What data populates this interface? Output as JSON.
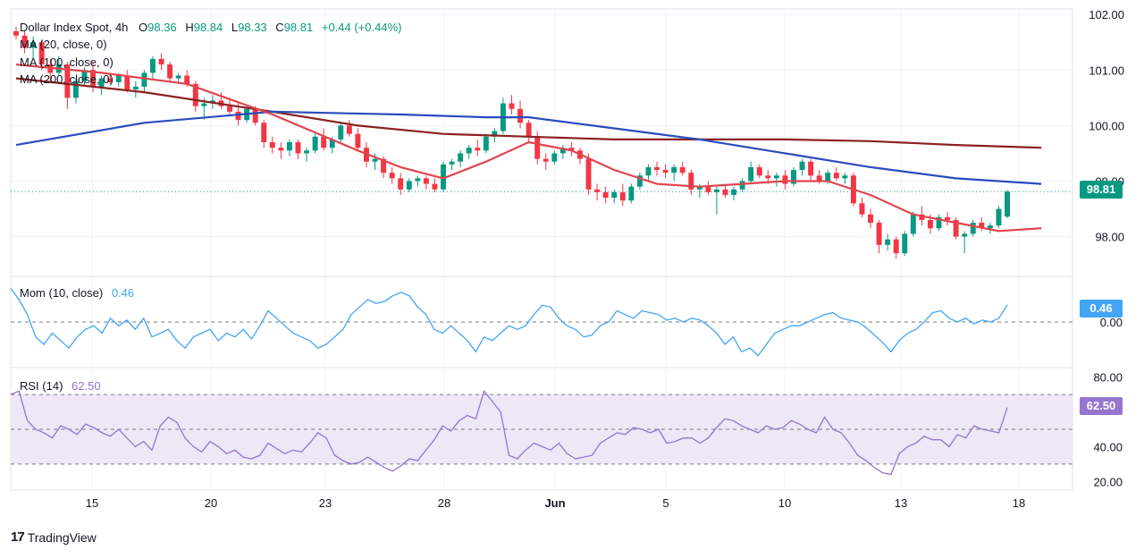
{
  "header": {
    "symbol": "Dollar Index Spot, 4h",
    "ohlc": {
      "o_label": "O",
      "o": "98.36",
      "h_label": "H",
      "h": "98.84",
      "l_label": "L",
      "l": "98.33",
      "c_label": "C",
      "c": "98.81",
      "change": "+0.44 (+0.44%)"
    },
    "ma_labels": [
      "MA (20, close, 0)",
      "MA (100, close, 0)",
      "MA (200, close, 0)"
    ],
    "mom_label": "Mom (10, close)",
    "mom_value": "0.46",
    "rsi_label": "RSI (14)",
    "rsi_value": "62.50"
  },
  "branding": {
    "logo_mark": "17",
    "logo_text": "TradingView"
  },
  "colors": {
    "up": "#089981",
    "down": "#f23645",
    "ma20": "#e0454f",
    "ma100": "#2a4bbd",
    "ma200": "#8b2121",
    "mom": "#42a5f5",
    "rsi": "#9575cd",
    "rsi_band": "#ede7f6",
    "grid": "#f0f3fa",
    "axis_text": "#131722"
  },
  "chart_data": [
    {
      "type": "candlestick",
      "title": "Dollar Index Spot, 4h",
      "price_axis": {
        "ticks": [
          "102.00",
          "101.00",
          "100.00",
          "99.00",
          "98.00"
        ],
        "ylim": [
          97.3,
          102.1
        ]
      },
      "time_axis": {
        "ticks": [
          "15",
          "20",
          "23",
          "28",
          "Jun",
          "5",
          "10",
          "13",
          "18"
        ]
      },
      "last_price": "98.81",
      "candles_ohlc": [
        [
          101.7,
          101.78,
          101.55,
          101.62
        ],
        [
          101.62,
          101.72,
          101.3,
          101.4
        ],
        [
          101.4,
          101.6,
          101.2,
          101.5
        ],
        [
          101.5,
          101.55,
          101.0,
          101.1
        ],
        [
          101.1,
          101.2,
          100.8,
          100.95
        ],
        [
          100.95,
          101.25,
          100.9,
          101.1
        ],
        [
          101.1,
          101.15,
          100.3,
          100.5
        ],
        [
          100.5,
          100.85,
          100.4,
          100.8
        ],
        [
          100.8,
          101.05,
          100.7,
          101.0
        ],
        [
          101.0,
          101.15,
          100.6,
          100.7
        ],
        [
          100.7,
          100.9,
          100.55,
          100.85
        ],
        [
          100.85,
          100.95,
          100.75,
          100.78
        ],
        [
          100.78,
          100.95,
          100.7,
          100.9
        ],
        [
          100.9,
          101.0,
          100.6,
          100.65
        ],
        [
          100.65,
          100.8,
          100.5,
          100.7
        ],
        [
          100.7,
          101.0,
          100.6,
          100.95
        ],
        [
          100.95,
          101.25,
          100.85,
          101.2
        ],
        [
          101.2,
          101.3,
          101.0,
          101.1
        ],
        [
          101.1,
          101.15,
          100.8,
          100.85
        ],
        [
          100.85,
          100.95,
          100.75,
          100.9
        ],
        [
          100.9,
          101.0,
          100.7,
          100.75
        ],
        [
          100.75,
          100.8,
          100.25,
          100.35
        ],
        [
          100.35,
          100.5,
          100.1,
          100.4
        ],
        [
          100.4,
          100.55,
          100.3,
          100.45
        ],
        [
          100.45,
          100.6,
          100.3,
          100.35
        ],
        [
          100.35,
          100.5,
          100.2,
          100.25
        ],
        [
          100.25,
          100.4,
          100.0,
          100.1
        ],
        [
          100.1,
          100.35,
          100.05,
          100.3
        ],
        [
          100.3,
          100.35,
          100.0,
          100.05
        ],
        [
          100.05,
          100.1,
          99.6,
          99.7
        ],
        [
          99.7,
          99.8,
          99.5,
          99.6
        ],
        [
          99.6,
          99.7,
          99.4,
          99.55
        ],
        [
          99.55,
          99.75,
          99.45,
          99.7
        ],
        [
          99.7,
          99.75,
          99.4,
          99.5
        ],
        [
          99.5,
          99.6,
          99.35,
          99.55
        ],
        [
          99.55,
          99.85,
          99.5,
          99.8
        ],
        [
          99.8,
          99.95,
          99.55,
          99.6
        ],
        [
          99.6,
          99.8,
          99.5,
          99.75
        ],
        [
          99.75,
          100.05,
          99.7,
          100.0
        ],
        [
          100.0,
          100.1,
          99.8,
          99.85
        ],
        [
          99.85,
          99.95,
          99.55,
          99.6
        ],
        [
          99.6,
          99.7,
          99.25,
          99.35
        ],
        [
          99.35,
          99.5,
          99.2,
          99.4
        ],
        [
          99.4,
          99.45,
          99.05,
          99.15
        ],
        [
          99.15,
          99.25,
          98.95,
          99.05
        ],
        [
          99.05,
          99.15,
          98.75,
          98.85
        ],
        [
          98.85,
          99.05,
          98.8,
          99.0
        ],
        [
          99.0,
          99.1,
          98.9,
          99.05
        ],
        [
          99.05,
          99.1,
          98.85,
          98.95
        ],
        [
          98.95,
          99.05,
          98.8,
          98.85
        ],
        [
          98.85,
          99.35,
          98.8,
          99.3
        ],
        [
          99.3,
          99.4,
          99.2,
          99.35
        ],
        [
          99.35,
          99.55,
          99.25,
          99.5
        ],
        [
          99.5,
          99.65,
          99.4,
          99.6
        ],
        [
          99.6,
          99.75,
          99.45,
          99.55
        ],
        [
          99.55,
          99.85,
          99.5,
          99.8
        ],
        [
          99.8,
          99.95,
          99.7,
          99.9
        ],
        [
          99.9,
          100.5,
          99.85,
          100.4
        ],
        [
          100.4,
          100.55,
          100.2,
          100.3
        ],
        [
          100.3,
          100.45,
          99.95,
          100.05
        ],
        [
          100.05,
          100.1,
          99.7,
          99.8
        ],
        [
          99.8,
          99.9,
          99.3,
          99.4
        ],
        [
          99.4,
          99.5,
          99.2,
          99.35
        ],
        [
          99.35,
          99.55,
          99.3,
          99.5
        ],
        [
          99.5,
          99.65,
          99.4,
          99.6
        ],
        [
          99.6,
          99.7,
          99.45,
          99.55
        ],
        [
          99.55,
          99.6,
          99.3,
          99.4
        ],
        [
          99.4,
          99.5,
          98.75,
          98.85
        ],
        [
          98.85,
          98.95,
          98.65,
          98.8
        ],
        [
          98.8,
          98.9,
          98.6,
          98.7
        ],
        [
          98.7,
          98.85,
          98.6,
          98.8
        ],
        [
          98.8,
          98.95,
          98.55,
          98.65
        ],
        [
          98.65,
          98.95,
          98.6,
          98.9
        ],
        [
          98.9,
          99.15,
          98.85,
          99.1
        ],
        [
          99.1,
          99.3,
          99.0,
          99.25
        ],
        [
          99.25,
          99.35,
          99.1,
          99.2
        ],
        [
          99.2,
          99.3,
          99.05,
          99.15
        ],
        [
          99.15,
          99.3,
          99.0,
          99.25
        ],
        [
          99.25,
          99.35,
          99.1,
          99.15
        ],
        [
          99.15,
          99.2,
          98.75,
          98.85
        ],
        [
          98.85,
          98.95,
          98.7,
          98.9
        ],
        [
          98.9,
          99.0,
          98.75,
          98.8
        ],
        [
          98.8,
          98.9,
          98.4,
          98.85
        ],
        [
          98.85,
          98.95,
          98.7,
          98.75
        ],
        [
          98.75,
          98.9,
          98.65,
          98.85
        ],
        [
          98.85,
          99.05,
          98.8,
          99.0
        ],
        [
          99.0,
          99.35,
          98.95,
          99.25
        ],
        [
          99.25,
          99.3,
          99.05,
          99.1
        ],
        [
          99.1,
          99.2,
          98.95,
          99.05
        ],
        [
          99.05,
          99.15,
          98.9,
          99.1
        ],
        [
          99.1,
          99.2,
          98.85,
          98.95
        ],
        [
          98.95,
          99.25,
          98.9,
          99.2
        ],
        [
          99.2,
          99.4,
          99.1,
          99.35
        ],
        [
          99.35,
          99.4,
          99.0,
          99.1
        ],
        [
          99.1,
          99.2,
          98.95,
          99.0
        ],
        [
          99.0,
          99.2,
          98.95,
          99.15
        ],
        [
          99.15,
          99.25,
          99.0,
          99.05
        ],
        [
          99.05,
          99.15,
          98.95,
          99.1
        ],
        [
          99.1,
          99.15,
          98.55,
          98.6
        ],
        [
          98.6,
          98.7,
          98.35,
          98.4
        ],
        [
          98.4,
          98.5,
          98.15,
          98.25
        ],
        [
          98.25,
          98.3,
          97.7,
          97.85
        ],
        [
          97.85,
          98.05,
          97.75,
          97.95
        ],
        [
          97.95,
          98.0,
          97.6,
          97.7
        ],
        [
          97.7,
          98.1,
          97.65,
          98.05
        ],
        [
          98.05,
          98.45,
          98.0,
          98.4
        ],
        [
          98.4,
          98.55,
          98.2,
          98.3
        ],
        [
          98.3,
          98.4,
          98.05,
          98.15
        ],
        [
          98.15,
          98.4,
          98.1,
          98.35
        ],
        [
          98.35,
          98.45,
          98.2,
          98.3
        ],
        [
          98.3,
          98.35,
          97.95,
          98.0
        ],
        [
          98.0,
          98.1,
          97.7,
          98.05
        ],
        [
          98.05,
          98.3,
          98.0,
          98.25
        ],
        [
          98.25,
          98.35,
          98.1,
          98.15
        ],
        [
          98.15,
          98.25,
          98.05,
          98.2
        ],
        [
          98.2,
          98.55,
          98.15,
          98.5
        ],
        [
          98.36,
          98.84,
          98.33,
          98.81
        ]
      ],
      "ma20": [
        [
          0,
          101.1
        ],
        [
          10,
          100.95
        ],
        [
          20,
          100.75
        ],
        [
          30,
          100.2
        ],
        [
          40,
          99.55
        ],
        [
          45,
          99.25
        ],
        [
          50,
          99.05
        ],
        [
          55,
          99.35
        ],
        [
          60,
          99.7
        ],
        [
          65,
          99.55
        ],
        [
          70,
          99.2
        ],
        [
          75,
          98.95
        ],
        [
          80,
          98.9
        ],
        [
          85,
          98.95
        ],
        [
          90,
          99.0
        ],
        [
          95,
          99.0
        ],
        [
          100,
          98.75
        ],
        [
          105,
          98.4
        ],
        [
          110,
          98.25
        ],
        [
          115,
          98.1
        ],
        [
          120,
          98.15
        ]
      ],
      "ma100": [
        [
          0,
          99.65
        ],
        [
          15,
          100.05
        ],
        [
          30,
          100.25
        ],
        [
          45,
          100.2
        ],
        [
          55,
          100.15
        ],
        [
          60,
          100.15
        ],
        [
          70,
          99.95
        ],
        [
          80,
          99.75
        ],
        [
          90,
          99.5
        ],
        [
          100,
          99.25
        ],
        [
          110,
          99.05
        ],
        [
          120,
          98.95
        ]
      ],
      "ma200": [
        [
          0,
          100.85
        ],
        [
          15,
          100.6
        ],
        [
          30,
          100.25
        ],
        [
          40,
          100.0
        ],
        [
          50,
          99.85
        ],
        [
          60,
          99.8
        ],
        [
          70,
          99.75
        ],
        [
          80,
          99.75
        ],
        [
          90,
          99.75
        ],
        [
          100,
          99.72
        ],
        [
          110,
          99.65
        ],
        [
          120,
          99.6
        ]
      ]
    },
    {
      "type": "line",
      "title": "Mom (10, close)",
      "y_axis": {
        "ticks": [
          "0.00"
        ],
        "ylim": [
          -1.2,
          1.2
        ]
      },
      "last_value": "0.46",
      "values": [
        0.9,
        0.6,
        0.2,
        -0.4,
        -0.6,
        -0.3,
        -0.5,
        -0.7,
        -0.4,
        -0.2,
        -0.1,
        -0.3,
        0.1,
        -0.1,
        0.05,
        -0.2,
        0.1,
        -0.4,
        -0.3,
        -0.2,
        -0.5,
        -0.7,
        -0.4,
        -0.3,
        -0.2,
        -0.5,
        -0.3,
        -0.4,
        -0.2,
        -0.45,
        -0.1,
        0.3,
        0.1,
        -0.1,
        -0.3,
        -0.4,
        -0.5,
        -0.7,
        -0.6,
        -0.4,
        -0.2,
        0.2,
        0.4,
        0.6,
        0.5,
        0.55,
        0.7,
        0.8,
        0.7,
        0.4,
        0.2,
        -0.2,
        -0.3,
        -0.1,
        -0.3,
        -0.5,
        -0.8,
        -0.4,
        -0.5,
        -0.3,
        -0.1,
        -0.2,
        -0.1,
        0.2,
        0.45,
        0.4,
        0.1,
        -0.1,
        -0.2,
        -0.4,
        -0.35,
        -0.1,
        0.0,
        0.3,
        0.2,
        0.1,
        0.3,
        0.25,
        0.2,
        0.05,
        0.1,
        0.0,
        0.1,
        0.05,
        -0.1,
        -0.3,
        -0.6,
        -0.4,
        -0.8,
        -0.7,
        -0.9,
        -0.6,
        -0.3,
        -0.2,
        -0.1,
        -0.1,
        0.0,
        0.1,
        0.2,
        0.25,
        0.1,
        0.05,
        0.0,
        -0.15,
        -0.35,
        -0.55,
        -0.8,
        -0.5,
        -0.3,
        -0.2,
        0.0,
        0.25,
        0.3,
        0.1,
        0.0,
        0.1,
        -0.05,
        0.05,
        0.0,
        0.1,
        0.46
      ]
    },
    {
      "type": "line",
      "title": "RSI (14)",
      "y_axis": {
        "ticks": [
          "80.00",
          "40.00",
          "20.00"
        ],
        "ylim": [
          15,
          85
        ],
        "bands": [
          30,
          50,
          70
        ]
      },
      "last_value": "62.50",
      "values": [
        70,
        72,
        55,
        50,
        48,
        45,
        52,
        50,
        47,
        53,
        51,
        48,
        46,
        50,
        45,
        40,
        43,
        38,
        52,
        57,
        54,
        45,
        40,
        37,
        43,
        40,
        36,
        38,
        34,
        33,
        35,
        42,
        39,
        36,
        38,
        37,
        42,
        48,
        45,
        35,
        32,
        30,
        31,
        34,
        31,
        28,
        26,
        29,
        33,
        32,
        38,
        44,
        52,
        49,
        55,
        58,
        56,
        72,
        66,
        60,
        35,
        33,
        38,
        42,
        40,
        38,
        42,
        36,
        33,
        34,
        35,
        42,
        45,
        48,
        47,
        51,
        50,
        48,
        50,
        42,
        43,
        45,
        45,
        42,
        45,
        51,
        56,
        55,
        52,
        50,
        48,
        52,
        50,
        51,
        55,
        53,
        50,
        48,
        57,
        50,
        48,
        42,
        35,
        32,
        28,
        25,
        24,
        36,
        40,
        42,
        46,
        44,
        44,
        40,
        47,
        45,
        52,
        50,
        49,
        48,
        62.5
      ]
    }
  ]
}
